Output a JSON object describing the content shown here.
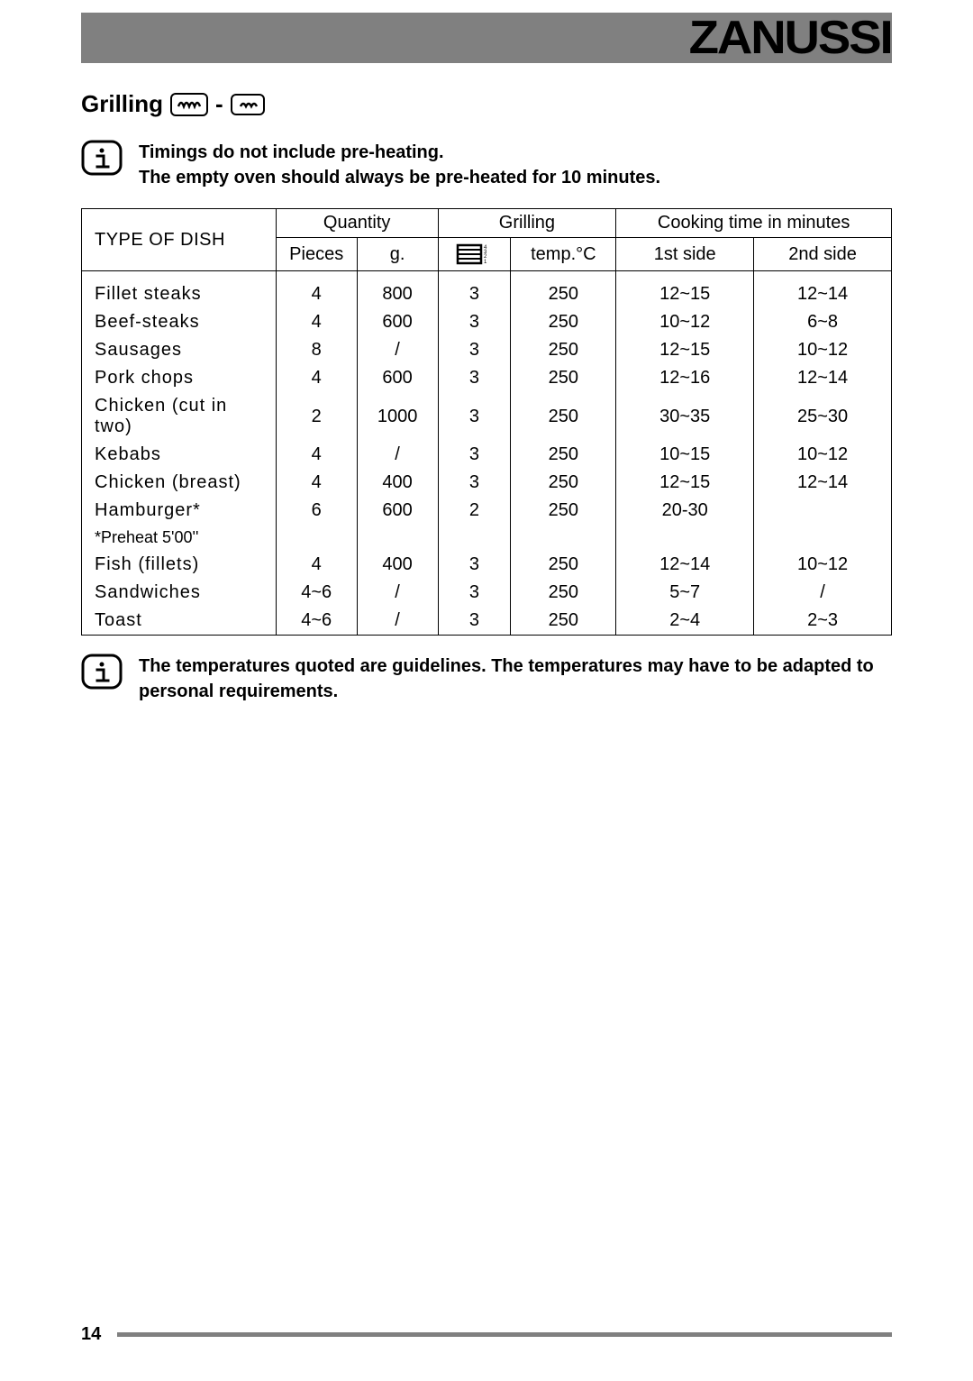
{
  "brand": "ZANUSSI",
  "section": {
    "title": "Grilling"
  },
  "notes": {
    "preheat1": "Timings do not include pre-heating.",
    "preheat2": "The empty oven should always be pre-heated for 10 minutes.",
    "footer": "The temperatures quoted are guidelines. The temperatures may have to be adapted to personal requirements."
  },
  "table": {
    "headers": {
      "type": "TYPE OF DISH",
      "quantity": "Quantity",
      "grilling": "Grilling",
      "cooktime": "Cooking time in minutes",
      "pieces": "Pieces",
      "grams": "g.",
      "temp": "temp.°C",
      "side1": "1st side",
      "side2": "2nd side"
    },
    "col_widths": [
      "24%",
      "10%",
      "10%",
      "9%",
      "13%",
      "17%",
      "17%"
    ],
    "rows": [
      {
        "dish": "Fillet steaks",
        "pieces": "4",
        "g": "800",
        "shelf": "3",
        "temp": "250",
        "s1": "12~15",
        "s2": "12~14"
      },
      {
        "dish": "Beef-steaks",
        "pieces": "4",
        "g": "600",
        "shelf": "3",
        "temp": "250",
        "s1": "10~12",
        "s2": "6~8"
      },
      {
        "dish": "Sausages",
        "pieces": "8",
        "g": "/",
        "shelf": "3",
        "temp": "250",
        "s1": "12~15",
        "s2": "10~12"
      },
      {
        "dish": "Pork chops",
        "pieces": "4",
        "g": "600",
        "shelf": "3",
        "temp": "250",
        "s1": "12~16",
        "s2": "12~14"
      },
      {
        "dish": "Chicken  (cut in two)",
        "pieces": "2",
        "g": "1000",
        "shelf": "3",
        "temp": "250",
        "s1": "30~35",
        "s2": "25~30"
      },
      {
        "dish": "Kebabs",
        "pieces": "4",
        "g": "/",
        "shelf": "3",
        "temp": "250",
        "s1": "10~15",
        "s2": "10~12"
      },
      {
        "dish": "Chicken (breast)",
        "pieces": "4",
        "g": "400",
        "shelf": "3",
        "temp": "250",
        "s1": "12~15",
        "s2": "12~14"
      },
      {
        "dish": "Hamburger*",
        "pieces": "6",
        "g": "600",
        "shelf": "2",
        "temp": "250",
        "s1": "20-30",
        "s2": ""
      },
      {
        "dish": "*Preheat 5'00''",
        "pieces": "",
        "g": "",
        "shelf": "",
        "temp": "",
        "s1": "",
        "s2": "",
        "note": true
      },
      {
        "dish": "Fish (fillets)",
        "pieces": "4",
        "g": "400",
        "shelf": "3",
        "temp": "250",
        "s1": "12~14",
        "s2": "10~12"
      },
      {
        "dish": "Sandwiches",
        "pieces": "4~6",
        "g": "/",
        "shelf": "3",
        "temp": "250",
        "s1": "5~7",
        "s2": "/"
      },
      {
        "dish": "Toast",
        "pieces": "4~6",
        "g": "/",
        "shelf": "3",
        "temp": "250",
        "s1": "2~4",
        "s2": "2~3"
      }
    ]
  },
  "page_number": "14",
  "colors": {
    "header_gray": "#808080",
    "black": "#000000",
    "white": "#ffffff"
  }
}
